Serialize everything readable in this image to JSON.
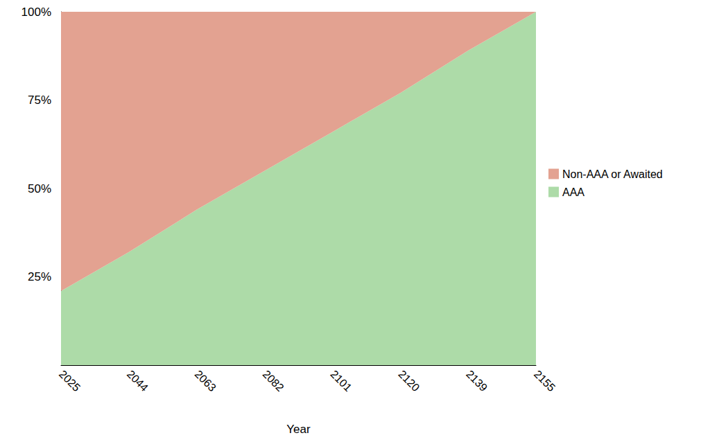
{
  "chart_data": {
    "type": "area",
    "stacked": true,
    "x_label": "Year",
    "categories": [
      "2025",
      "2044",
      "2063",
      "2082",
      "2101",
      "2120",
      "2139",
      "2155"
    ],
    "series": [
      {
        "name": "Non-AAA or Awaited",
        "color": "#e3a291",
        "values": [
          79,
          68,
          56,
          45,
          34,
          23,
          11,
          0
        ]
      },
      {
        "name": "AAA",
        "color": "#addba8",
        "values": [
          21,
          32,
          44,
          55,
          66,
          77,
          89,
          100
        ]
      }
    ],
    "ylim": [
      0,
      100
    ],
    "yticks": [
      {
        "value": 25,
        "label": "25%"
      },
      {
        "value": 50,
        "label": "50%"
      },
      {
        "value": 75,
        "label": "75%"
      },
      {
        "value": 100,
        "label": "100%"
      }
    ],
    "grid": false,
    "legend": "right"
  }
}
